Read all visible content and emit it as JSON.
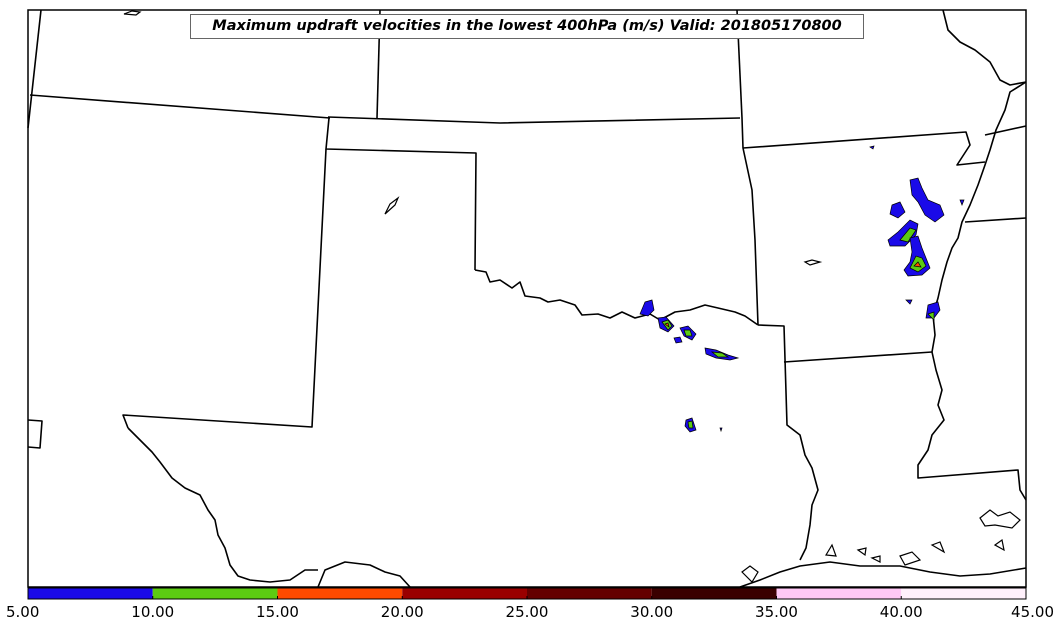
{
  "title": "Maximum updraft velocities in the lowest 400hPa (m/s) Valid: 201805170800",
  "colorbar": {
    "ticks": [
      "5.00",
      "10.00",
      "15.00",
      "20.00",
      "25.00",
      "30.00",
      "35.00",
      "40.00",
      "45.00"
    ],
    "bins": [
      {
        "from": 5,
        "to": 10,
        "color": "#1a0ae8"
      },
      {
        "from": 10,
        "to": 15,
        "color": "#5ccb12"
      },
      {
        "from": 15,
        "to": 20,
        "color": "#ff4a00"
      },
      {
        "from": 20,
        "to": 25,
        "color": "#9a0000"
      },
      {
        "from": 25,
        "to": 30,
        "color": "#640000"
      },
      {
        "from": 30,
        "to": 35,
        "color": "#3a0000"
      },
      {
        "from": 35,
        "to": 40,
        "color": "#ffc8f5"
      },
      {
        "from": 40,
        "to": 45,
        "color": "#fff0fb"
      }
    ]
  }
}
